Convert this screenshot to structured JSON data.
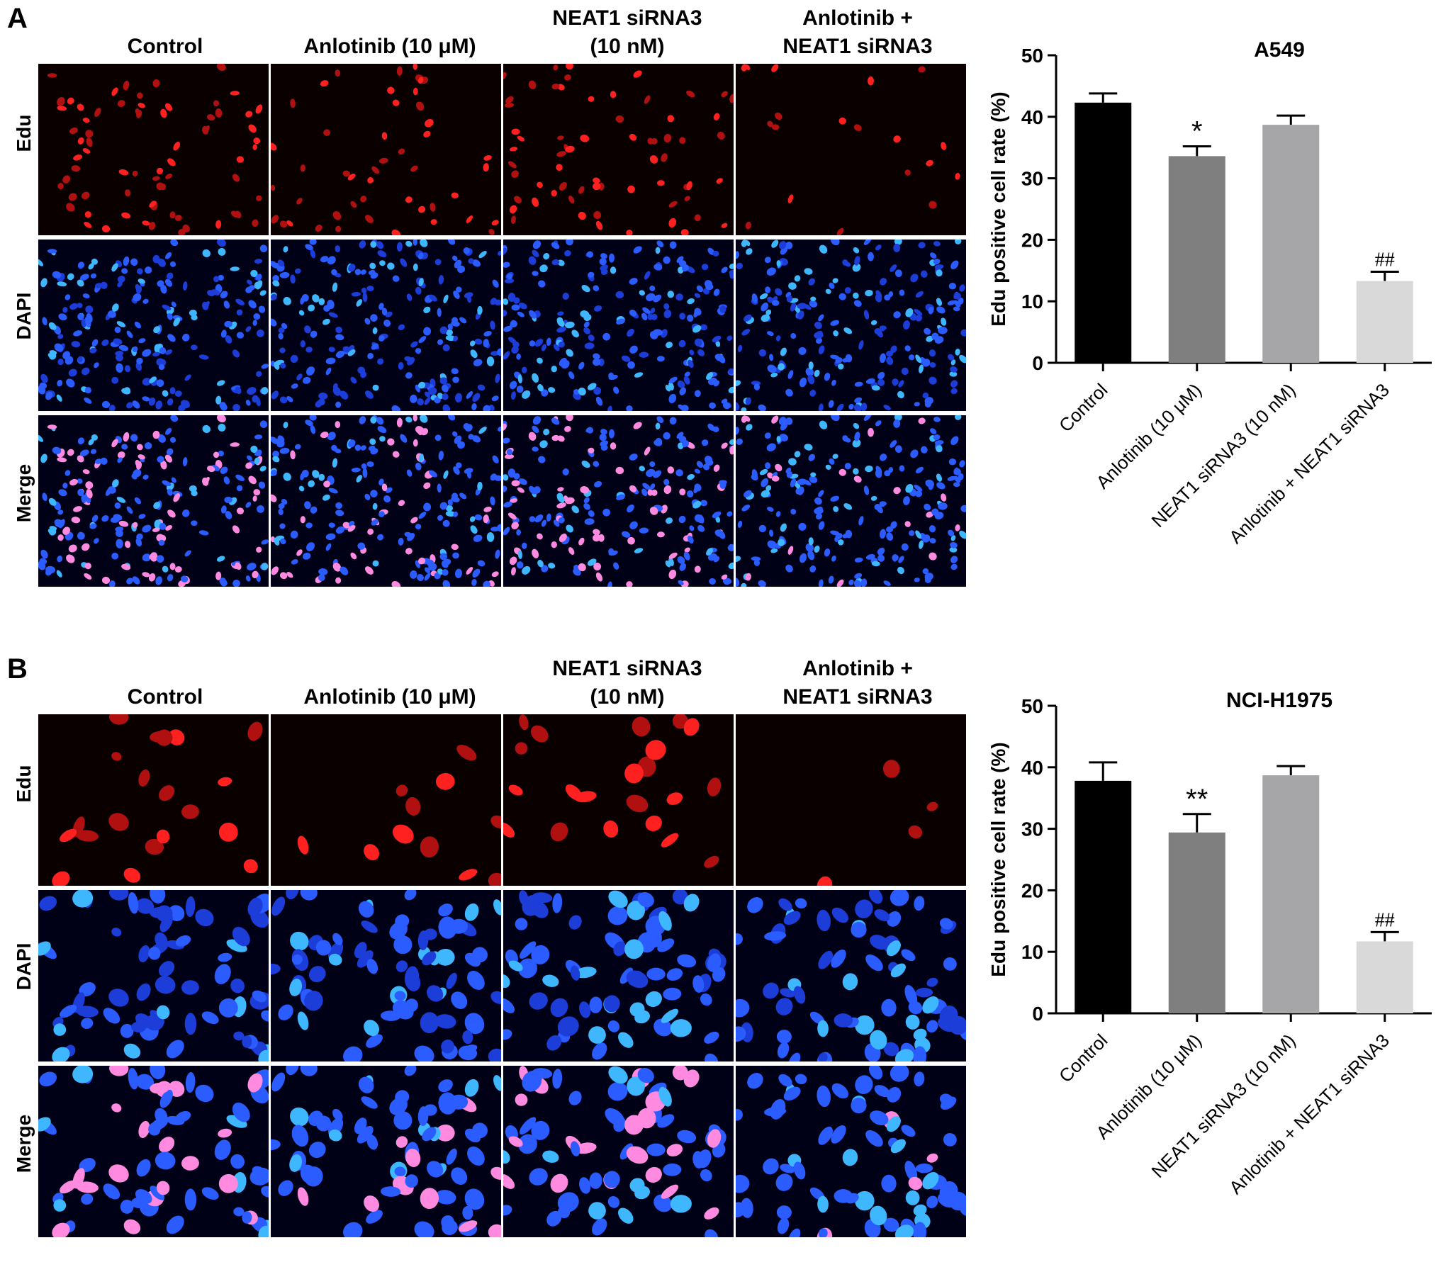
{
  "panels": [
    {
      "letter": "A",
      "columns": [
        "Control",
        "Anlotinib (10 μM)",
        "NEAT1 siRNA3\n(10 nM)",
        "Anlotinib +\nNEAT1 siRNA3"
      ],
      "rows": [
        "Edu",
        "DAPI",
        "Merge"
      ]
    },
    {
      "letter": "B",
      "columns": [
        "Control",
        "Anlotinib (10 μM)",
        "NEAT1 siRNA3\n(10 nM)",
        "Anlotinib +\nNEAT1 siRNA3"
      ],
      "rows": [
        "Edu",
        "DAPI",
        "Merge"
      ]
    }
  ],
  "colors": {
    "edu": "#ff2020",
    "dapi": "#2a5cff",
    "merge_pink": "#ff8ae0",
    "bar_fills": [
      "#000000",
      "#7f7f7f",
      "#a6a6a8",
      "#d9d9d9"
    ]
  },
  "chart_data": [
    {
      "type": "bar",
      "title": "A549",
      "ylabel": "Edu positive cell rate (%)",
      "categories": [
        "Control",
        "Anlotinib (10 μM)",
        "NEAT1 siRNA3 (10 nM)",
        "Anlotinib + NEAT1 siRNA3"
      ],
      "values": [
        42.3,
        33.6,
        38.7,
        13.3
      ],
      "errors": [
        1.5,
        1.6,
        1.5,
        1.5
      ],
      "annotations": [
        "",
        "*",
        "",
        "##"
      ],
      "ylim": [
        0,
        50
      ],
      "yticks": [
        "0",
        "10",
        "20",
        "30",
        "40",
        "50"
      ],
      "grid": false
    },
    {
      "type": "bar",
      "title": "NCI-H1975",
      "ylabel": "Edu positive cell rate (%)",
      "categories": [
        "Control",
        "Anlotinib (10 μM)",
        "NEAT1 siRNA3 (10 nM)",
        "Anlotinib + NEAT1 siRNA3"
      ],
      "values": [
        37.8,
        29.4,
        38.7,
        11.7
      ],
      "errors": [
        3.0,
        3.0,
        1.5,
        1.5
      ],
      "annotations": [
        "",
        "**",
        "",
        "##"
      ],
      "ylim": [
        0,
        50
      ],
      "yticks": [
        "0",
        "10",
        "20",
        "30",
        "40",
        "50"
      ],
      "grid": false
    }
  ]
}
